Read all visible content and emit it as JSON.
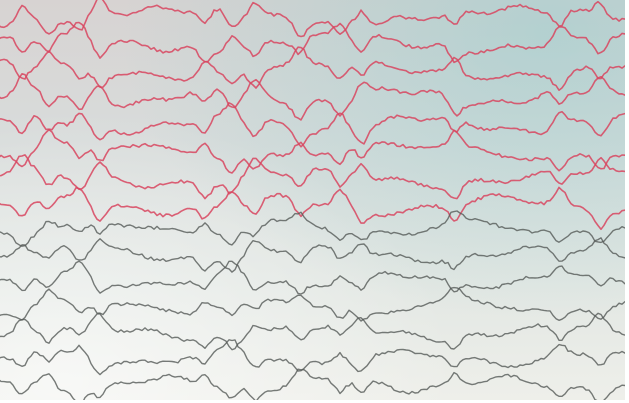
{
  "image": {
    "subject": "eeg-trace-photo",
    "colors": {
      "upper_traces": "#d8455f",
      "lower_traces": "#555a57",
      "background_top": "#d7d3d2",
      "background_bottom": "#eeefea"
    },
    "trace_count": {
      "red": 8,
      "gray": 7
    }
  }
}
